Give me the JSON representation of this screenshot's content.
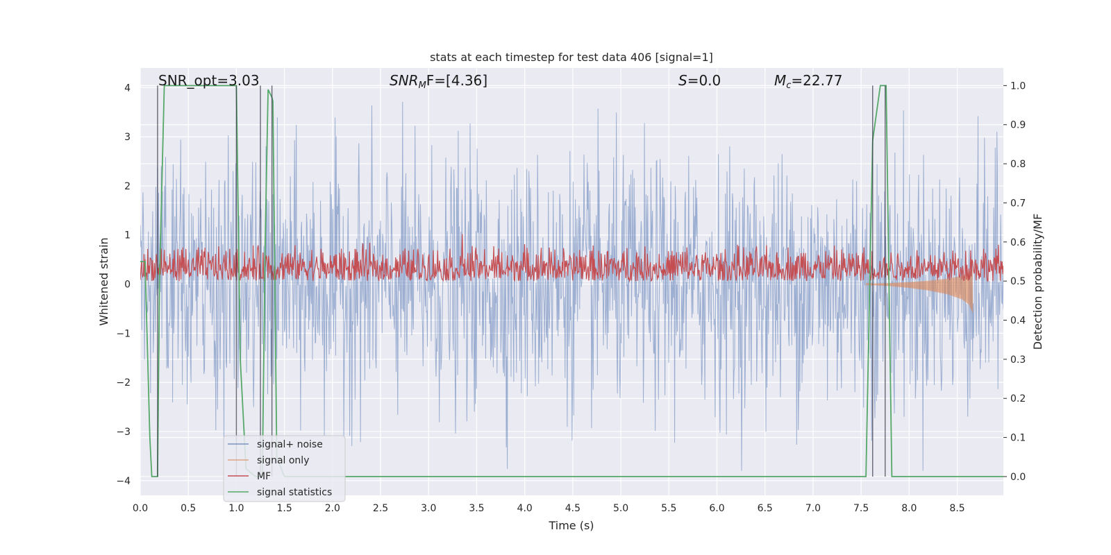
{
  "chart_data": {
    "type": "line",
    "title": "stats at each timestep for test data 406 [signal=1]",
    "xlabel": "Time (s)",
    "ylabel": "Whitened strain",
    "y2label": "Detection probability/MF",
    "xlim": [
      0,
      8.98
    ],
    "ylim": [
      -4.3,
      4.4
    ],
    "y2lim": [
      -0.048,
      1.045
    ],
    "grid": true,
    "legend_position": "lower-left",
    "x_ticks": [
      "0.0",
      "0.5",
      "1.0",
      "1.5",
      "2.0",
      "2.5",
      "3.0",
      "3.5",
      "4.0",
      "4.5",
      "5.0",
      "5.5",
      "6.0",
      "6.5",
      "7.0",
      "7.5",
      "8.0",
      "8.5"
    ],
    "y_ticks": [
      "−4",
      "−3",
      "−2",
      "−1",
      "0",
      "1",
      "2",
      "3",
      "4"
    ],
    "y2_ticks": [
      "0.0",
      "0.1",
      "0.2",
      "0.3",
      "0.4",
      "0.5",
      "0.6",
      "0.7",
      "0.8",
      "0.9",
      "1.0"
    ],
    "annotations": {
      "snr_opt": "SNR_opt=3.03",
      "snr_mf_sym": "SNR",
      "snr_mf_sub": "M",
      "snr_mf_rest": "F=[4.36]",
      "s_sym": "S",
      "s_rest": "=0.0",
      "mc_sym": "M",
      "mc_sub": "c",
      "mc_rest": "=22.77"
    },
    "series": [
      {
        "name": "signal+ noise",
        "color": "#4c72b0",
        "amplitude_range": [
          -3.8,
          3.9
        ],
        "x_range": [
          0,
          8.98
        ]
      },
      {
        "name": "signal only",
        "color": "#dd8452",
        "x": [
          7.55,
          7.8,
          8.0,
          8.2,
          8.4,
          8.55,
          8.62,
          8.66
        ],
        "amplitude": [
          0.01,
          0.03,
          0.06,
          0.1,
          0.16,
          0.24,
          0.32,
          0.45
        ]
      },
      {
        "name": "MF",
        "color": "#c44e52",
        "range": [
          0.5,
          0.6
        ],
        "outliers": [
          {
            "x": 3.35,
            "y": 0.62
          }
        ]
      },
      {
        "name": "signal statistics",
        "color": "#55a868",
        "x": [
          0.0,
          0.05,
          0.1,
          0.12,
          0.18,
          0.2,
          0.25,
          0.5,
          0.8,
          1.0,
          1.04,
          1.1,
          1.2,
          1.27,
          1.3,
          1.33,
          1.37,
          1.38,
          1.42,
          1.5,
          2.0,
          4.0,
          6.0,
          7.0,
          7.5,
          7.55,
          7.59,
          7.62,
          7.7,
          7.76,
          7.82,
          8.0,
          8.98
        ],
        "y": [
          0.55,
          0.55,
          0.1,
          0.0,
          0.0,
          0.5,
          1.0,
          1.0,
          1.0,
          1.0,
          0.3,
          0.02,
          0.0,
          0.0,
          0.6,
          0.99,
          0.97,
          0.96,
          0.05,
          0.0,
          0.0,
          0.0,
          0.0,
          0.0,
          0.0,
          0.0,
          0.5,
          0.86,
          1.0,
          1.0,
          0.0,
          0.0,
          0.0
        ]
      }
    ],
    "vertical_lines": [
      0.18,
      1.0,
      1.25,
      1.37,
      7.62,
      7.75
    ]
  }
}
